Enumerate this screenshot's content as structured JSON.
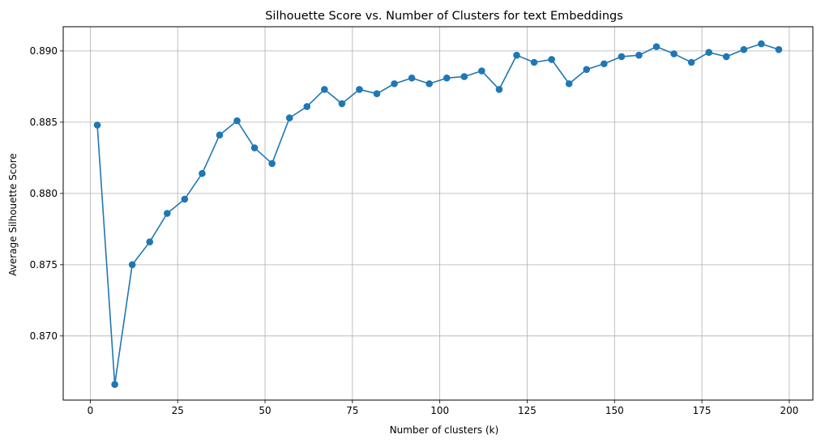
{
  "chart_data": {
    "type": "line",
    "title": "Silhouette Score vs. Number of Clusters for text Embeddings",
    "xlabel": "Number of clusters (k)",
    "ylabel": "Average Silhouette Score",
    "x_ticks": [
      0,
      25,
      50,
      75,
      100,
      125,
      150,
      175,
      200
    ],
    "y_ticks": [
      0.87,
      0.875,
      0.88,
      0.885,
      0.89
    ],
    "x_tick_labels": [
      "0",
      "25",
      "50",
      "75",
      100,
      "125",
      "150",
      "175",
      "200"
    ],
    "y_tick_labels": [
      "0.870",
      "0.875",
      "0.880",
      "0.885",
      "0.890"
    ],
    "xlim": [
      -7.75,
      206.75
    ],
    "ylim": [
      0.8655,
      0.8917
    ],
    "grid": true,
    "line_color": "#1f77b4",
    "marker": "circle",
    "series": [
      {
        "x": [
          2,
          7,
          12,
          17,
          22,
          27,
          32,
          37,
          42,
          47,
          52,
          57,
          62,
          67,
          72,
          77,
          82,
          87,
          92,
          97,
          102,
          107,
          112,
          117,
          122,
          127,
          132,
          137,
          142,
          147,
          152,
          157,
          162,
          167,
          172,
          177,
          182,
          187,
          192,
          197
        ],
        "y": [
          0.8848,
          0.8666,
          0.875,
          0.8766,
          0.8786,
          0.8796,
          0.8814,
          0.8841,
          0.8851,
          0.8832,
          0.8821,
          0.8853,
          0.8861,
          0.8873,
          0.8863,
          0.8873,
          0.887,
          0.8877,
          0.8881,
          0.8877,
          0.8881,
          0.8882,
          0.8886,
          0.8873,
          0.8897,
          0.8892,
          0.8894,
          0.8877,
          0.8887,
          0.8891,
          0.8896,
          0.8897,
          0.8903,
          0.8898,
          0.8892,
          0.8899,
          0.8896,
          0.8901,
          0.8905,
          0.8901
        ]
      }
    ]
  }
}
